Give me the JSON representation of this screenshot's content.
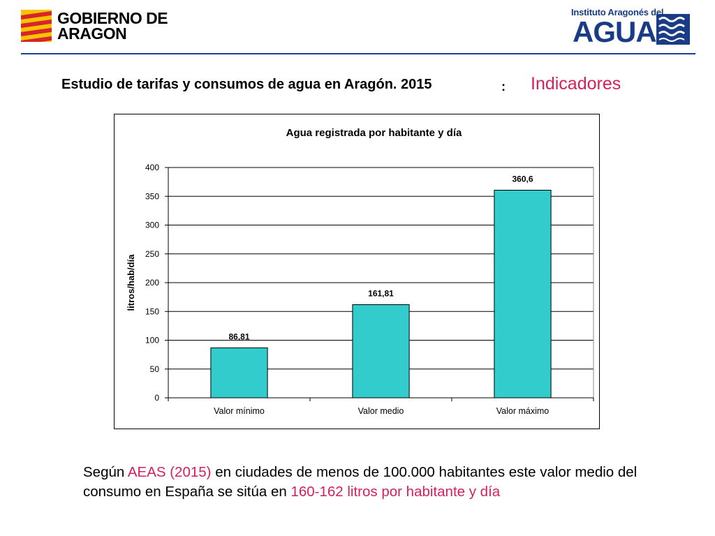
{
  "header": {
    "left_logo_text": "GOBIERNO DE ARAGON",
    "right_logo_small": "Instituto Aragonés del",
    "right_logo_big": "AGUA"
  },
  "heading": {
    "main": "Estudio de tarifas y consumos de agua en Aragón. 2015",
    "separator": ":",
    "highlight": "Indicadores"
  },
  "colors": {
    "accent": "#d6205b",
    "bar": "#33cccc",
    "brand_blue": "#1d3f8f"
  },
  "chart_data": {
    "type": "bar",
    "title": "Agua registrada por habitante y día",
    "ylabel": "litros/hab/día",
    "xlabel": "",
    "categories": [
      "Valor mínimo",
      "Valor medio",
      "Valor máximo"
    ],
    "values": [
      86.81,
      161.81,
      360.6
    ],
    "value_labels": [
      "86,81",
      "161,81",
      "360,6"
    ],
    "ylim": [
      0,
      400
    ],
    "yticks": [
      0,
      50,
      100,
      150,
      200,
      250,
      300,
      350,
      400
    ],
    "grid": true,
    "legend": "none"
  },
  "footer": {
    "part1": "Según ",
    "part2": "AEAS (2015)",
    "part3": " en ciudades de menos de 100.000 habitantes este valor medio del consumo en España se sitúa en ",
    "part4": "160-162 litros por habitante y día"
  }
}
